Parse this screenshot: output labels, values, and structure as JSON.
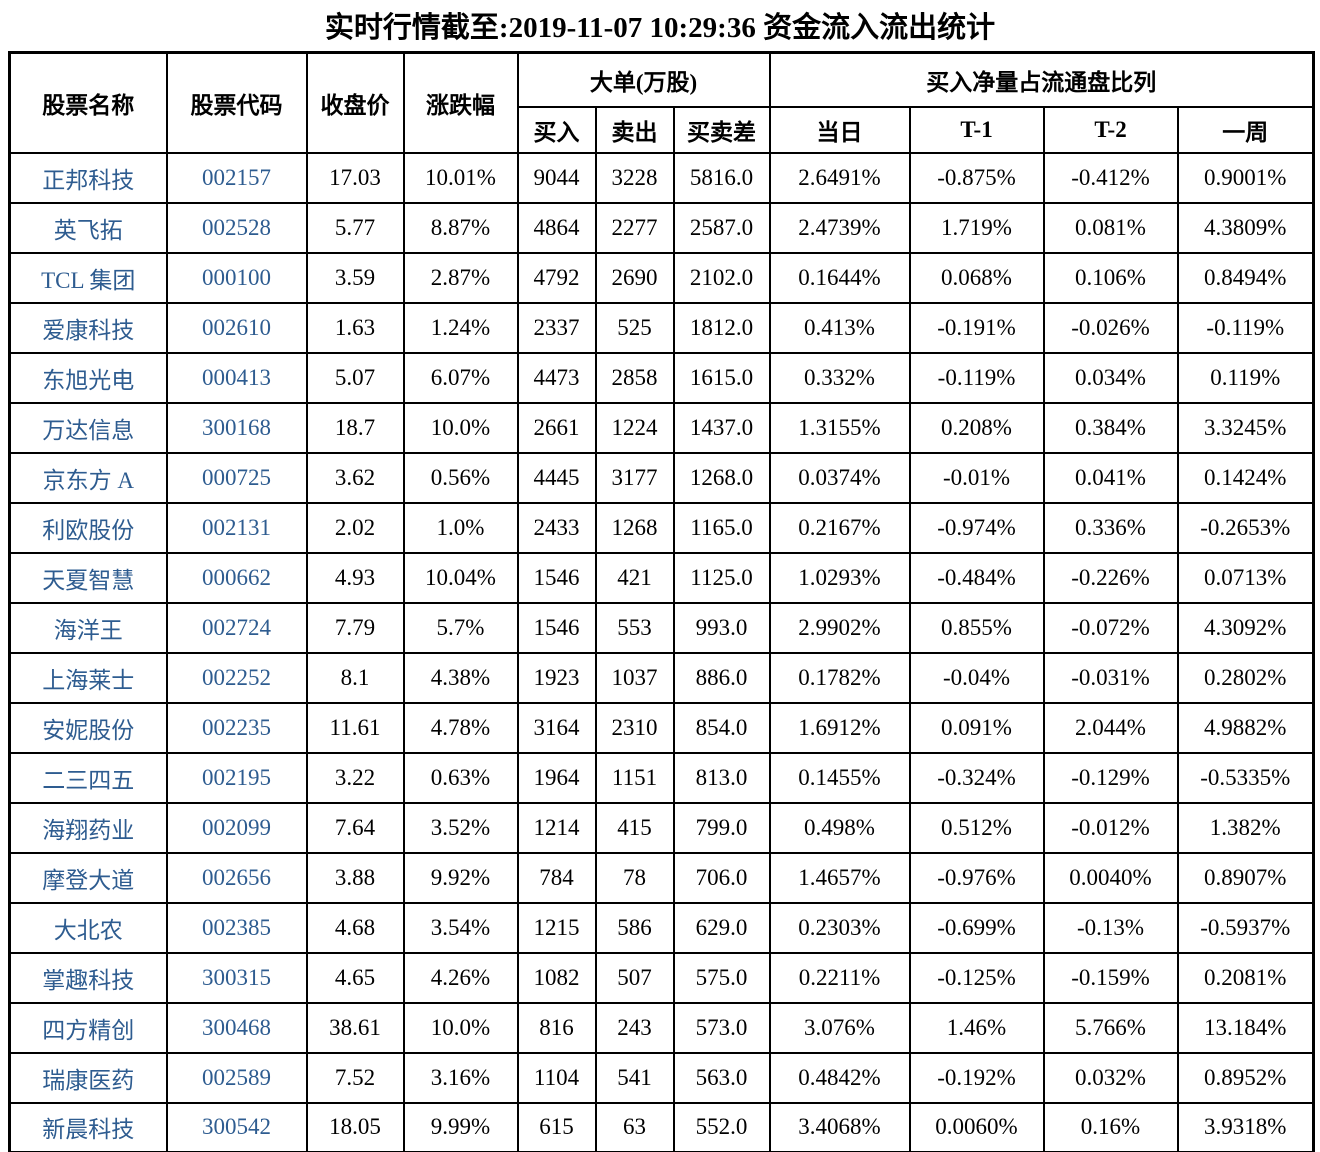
{
  "title": "实时行情截至:2019-11-07 10:29:36 资金流入流出统计",
  "colors": {
    "name_code_blue": "#2e5c90",
    "text": "#000000",
    "border": "#000000",
    "background": "#ffffff"
  },
  "table": {
    "column_groups": {
      "large_order": "大单(万股)",
      "net_buy_ratio": "买入净量占流通盘比列"
    },
    "columns": [
      "股票名称",
      "股票代码",
      "收盘价",
      "涨跌幅",
      "买入",
      "卖出",
      "买卖差",
      "当日",
      "T-1",
      "T-2",
      "一周"
    ],
    "rows": [
      [
        "正邦科技",
        "002157",
        "17.03",
        "10.01%",
        "9044",
        "3228",
        "5816.0",
        "2.6491%",
        "-0.875%",
        "-0.412%",
        "0.9001%"
      ],
      [
        "英飞拓",
        "002528",
        "5.77",
        "8.87%",
        "4864",
        "2277",
        "2587.0",
        "2.4739%",
        "1.719%",
        "0.081%",
        "4.3809%"
      ],
      [
        "TCL 集团",
        "000100",
        "3.59",
        "2.87%",
        "4792",
        "2690",
        "2102.0",
        "0.1644%",
        "0.068%",
        "0.106%",
        "0.8494%"
      ],
      [
        "爱康科技",
        "002610",
        "1.63",
        "1.24%",
        "2337",
        "525",
        "1812.0",
        "0.413%",
        "-0.191%",
        "-0.026%",
        "-0.119%"
      ],
      [
        "东旭光电",
        "000413",
        "5.07",
        "6.07%",
        "4473",
        "2858",
        "1615.0",
        "0.332%",
        "-0.119%",
        "0.034%",
        "0.119%"
      ],
      [
        "万达信息",
        "300168",
        "18.7",
        "10.0%",
        "2661",
        "1224",
        "1437.0",
        "1.3155%",
        "0.208%",
        "0.384%",
        "3.3245%"
      ],
      [
        "京东方 A",
        "000725",
        "3.62",
        "0.56%",
        "4445",
        "3177",
        "1268.0",
        "0.0374%",
        "-0.01%",
        "0.041%",
        "0.1424%"
      ],
      [
        "利欧股份",
        "002131",
        "2.02",
        "1.0%",
        "2433",
        "1268",
        "1165.0",
        "0.2167%",
        "-0.974%",
        "0.336%",
        "-0.2653%"
      ],
      [
        "天夏智慧",
        "000662",
        "4.93",
        "10.04%",
        "1546",
        "421",
        "1125.0",
        "1.0293%",
        "-0.484%",
        "-0.226%",
        "0.0713%"
      ],
      [
        "海洋王",
        "002724",
        "7.79",
        "5.7%",
        "1546",
        "553",
        "993.0",
        "2.9902%",
        "0.855%",
        "-0.072%",
        "4.3092%"
      ],
      [
        "上海莱士",
        "002252",
        "8.1",
        "4.38%",
        "1923",
        "1037",
        "886.0",
        "0.1782%",
        "-0.04%",
        "-0.031%",
        "0.2802%"
      ],
      [
        "安妮股份",
        "002235",
        "11.61",
        "4.78%",
        "3164",
        "2310",
        "854.0",
        "1.6912%",
        "0.091%",
        "2.044%",
        "4.9882%"
      ],
      [
        "二三四五",
        "002195",
        "3.22",
        "0.63%",
        "1964",
        "1151",
        "813.0",
        "0.1455%",
        "-0.324%",
        "-0.129%",
        "-0.5335%"
      ],
      [
        "海翔药业",
        "002099",
        "7.64",
        "3.52%",
        "1214",
        "415",
        "799.0",
        "0.498%",
        "0.512%",
        "-0.012%",
        "1.382%"
      ],
      [
        "摩登大道",
        "002656",
        "3.88",
        "9.92%",
        "784",
        "78",
        "706.0",
        "1.4657%",
        "-0.976%",
        "0.0040%",
        "0.8907%"
      ],
      [
        "大北农",
        "002385",
        "4.68",
        "3.54%",
        "1215",
        "586",
        "629.0",
        "0.2303%",
        "-0.699%",
        "-0.13%",
        "-0.5937%"
      ],
      [
        "掌趣科技",
        "300315",
        "4.65",
        "4.26%",
        "1082",
        "507",
        "575.0",
        "0.2211%",
        "-0.125%",
        "-0.159%",
        "0.2081%"
      ],
      [
        "四方精创",
        "300468",
        "38.61",
        "10.0%",
        "816",
        "243",
        "573.0",
        "3.076%",
        "1.46%",
        "5.766%",
        "13.184%"
      ],
      [
        "瑞康医药",
        "002589",
        "7.52",
        "3.16%",
        "1104",
        "541",
        "563.0",
        "0.4842%",
        "-0.192%",
        "0.032%",
        "0.8952%"
      ],
      [
        "新晨科技",
        "300542",
        "18.05",
        "9.99%",
        "615",
        "63",
        "552.0",
        "3.4068%",
        "0.0060%",
        "0.16%",
        "3.9318%"
      ]
    ]
  }
}
